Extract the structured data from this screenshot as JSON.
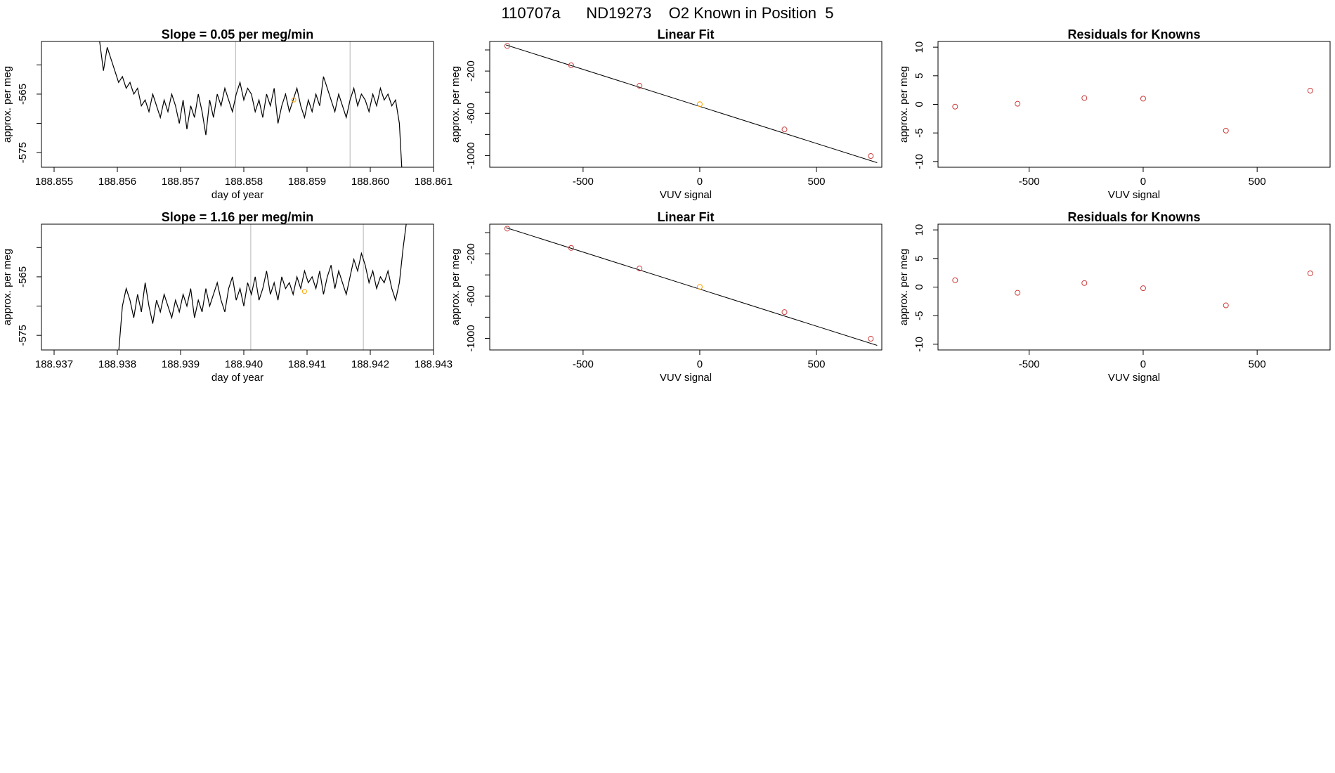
{
  "page": {
    "title": "110707a      ND19273    O2 Known in Position  5"
  },
  "colors": {
    "line": "#000000",
    "vline": "#b4b4b4",
    "known": "#cd3c3c",
    "highlight": "#ffa500"
  },
  "chart_data": [
    {
      "type": "line",
      "title": "Slope =  0.05  per meg/min",
      "xlabel": "day of year",
      "ylabel": "approx. per meg",
      "xlim": [
        188.8548,
        188.861
      ],
      "ylim": [
        -577.5,
        -556
      ],
      "xticks": [
        188.855,
        188.856,
        188.857,
        188.858,
        188.859,
        188.86,
        188.861
      ],
      "xticklabels": [
        "188.855",
        "188.856",
        "188.857",
        "188.858",
        "188.859",
        "188.860",
        "188.861"
      ],
      "yticks": [
        -575,
        -570,
        -565,
        -560
      ],
      "yticklabels": [
        "-575",
        "",
        "-565",
        ""
      ],
      "vlines": [
        188.85787,
        188.85968
      ],
      "highlight_points": [
        {
          "x": 188.85879,
          "y": -566.0
        }
      ],
      "x": [
        188.85572,
        188.85578,
        188.85584,
        188.8559,
        188.85596,
        188.85602,
        188.85608,
        188.85614,
        188.8562,
        188.85626,
        188.85632,
        188.85638,
        188.85644,
        188.8565,
        188.85656,
        188.85662,
        188.85668,
        188.85674,
        188.8568,
        188.85686,
        188.85692,
        188.85698,
        188.85704,
        188.8571,
        188.85716,
        188.85722,
        188.85728,
        188.85734,
        188.8574,
        188.85746,
        188.85752,
        188.85758,
        188.85764,
        188.8577,
        188.85776,
        188.85782,
        188.85788,
        188.85794,
        188.858,
        188.85806,
        188.85812,
        188.85818,
        188.85824,
        188.8583,
        188.85836,
        188.85842,
        188.85848,
        188.85854,
        188.8586,
        188.85866,
        188.85872,
        188.85878,
        188.85884,
        188.8589,
        188.85896,
        188.85902,
        188.85908,
        188.85914,
        188.8592,
        188.85926,
        188.85932,
        188.85938,
        188.85944,
        188.8595,
        188.85956,
        188.85962,
        188.85968,
        188.85974,
        188.8598,
        188.85986,
        188.85992,
        188.85998,
        188.86004,
        188.8601,
        188.86016,
        188.86022,
        188.86028,
        188.86034,
        188.8604,
        188.86046,
        188.8605
      ],
      "y": [
        -556,
        -561,
        -557,
        -559,
        -561,
        -563,
        -562,
        -564,
        -563,
        -565,
        -564,
        -567,
        -566,
        -568,
        -565,
        -567,
        -569,
        -566,
        -568,
        -565,
        -567,
        -570,
        -566,
        -571,
        -567,
        -569,
        -565,
        -568,
        -572,
        -566,
        -569,
        -565,
        -567,
        -564,
        -566,
        -568,
        -565,
        -563,
        -566,
        -564,
        -565,
        -568,
        -566,
        -569,
        -565,
        -567,
        -564,
        -570,
        -567,
        -565,
        -568,
        -566,
        -564,
        -567,
        -569,
        -566,
        -568,
        -565,
        -567,
        -562,
        -564,
        -566,
        -568,
        -565,
        -567,
        -569,
        -566,
        -564,
        -567,
        -565,
        -566,
        -568,
        -565,
        -567,
        -564,
        -566,
        -565,
        -567,
        -566,
        -570,
        -578
      ]
    },
    {
      "type": "scatter",
      "title": "Linear Fit",
      "xlabel": "VUV signal",
      "ylabel": "approx. per meg",
      "xlim": [
        -900,
        780
      ],
      "ylim": [
        -1110,
        80
      ],
      "xticks": [
        -500,
        0,
        500
      ],
      "xticklabels": [
        "-500",
        "0",
        "500"
      ],
      "yticks": [
        -1000,
        -800,
        -600,
        -400,
        -200,
        0
      ],
      "yticklabels": [
        "-1000",
        "",
        "-600",
        "",
        "-200",
        ""
      ],
      "fit_line": {
        "x": [
          -830,
          760
        ],
        "y": [
          47,
          -1067
        ]
      },
      "points": [
        {
          "x": -825,
          "y": 38,
          "known": true
        },
        {
          "x": -551,
          "y": -145,
          "known": true
        },
        {
          "x": -258,
          "y": -339,
          "known": true
        },
        {
          "x": 0,
          "y": -513,
          "known": false
        },
        {
          "x": 363,
          "y": -752,
          "known": true
        },
        {
          "x": 733,
          "y": -1004,
          "known": true
        }
      ]
    },
    {
      "type": "scatter",
      "title": "Residuals for Knowns",
      "xlabel": "VUV signal",
      "ylabel": "approx. per meg",
      "xlim": [
        -900,
        820
      ],
      "ylim": [
        -11,
        11
      ],
      "xticks": [
        -500,
        0,
        500
      ],
      "xticklabels": [
        "-500",
        "0",
        "500"
      ],
      "yticks": [
        -10,
        -5,
        0,
        5,
        10
      ],
      "yticklabels": [
        "-10",
        "-5",
        "0",
        "5",
        "10"
      ],
      "points": [
        {
          "x": -825,
          "y": -0.4
        },
        {
          "x": -551,
          "y": 0.1
        },
        {
          "x": -258,
          "y": 1.1
        },
        {
          "x": 0,
          "y": 1.0
        },
        {
          "x": 363,
          "y": -4.6
        },
        {
          "x": 733,
          "y": 2.4
        }
      ]
    },
    {
      "type": "line",
      "title": "Slope =  1.16  per meg/min",
      "xlabel": "day of year",
      "ylabel": "approx. per meg",
      "xlim": [
        188.9368,
        188.943
      ],
      "ylim": [
        -577.5,
        -556
      ],
      "xticks": [
        188.937,
        188.938,
        188.939,
        188.94,
        188.941,
        188.942,
        188.943
      ],
      "xticklabels": [
        "188.937",
        "188.938",
        "188.939",
        "188.940",
        "188.941",
        "188.942",
        "188.943"
      ],
      "yticks": [
        -575,
        -570,
        -565,
        -560
      ],
      "yticklabels": [
        "-575",
        "",
        "-565",
        ""
      ],
      "vlines": [
        188.94011,
        188.94189
      ],
      "highlight_points": [
        {
          "x": 188.94096,
          "y": -567.5
        }
      ],
      "x": [
        188.93802,
        188.93808,
        188.93814,
        188.9382,
        188.93826,
        188.93832,
        188.93838,
        188.93844,
        188.9385,
        188.93856,
        188.93862,
        188.93868,
        188.93874,
        188.9388,
        188.93886,
        188.93892,
        188.93898,
        188.93904,
        188.9391,
        188.93916,
        188.93922,
        188.93928,
        188.93934,
        188.9394,
        188.93946,
        188.93952,
        188.93958,
        188.93964,
        188.9397,
        188.93976,
        188.93982,
        188.93988,
        188.93994,
        188.94,
        188.94006,
        188.94012,
        188.94018,
        188.94024,
        188.9403,
        188.94036,
        188.94042,
        188.94048,
        188.94054,
        188.9406,
        188.94066,
        188.94072,
        188.94078,
        188.94084,
        188.9409,
        188.94096,
        188.94102,
        188.94108,
        188.94114,
        188.9412,
        188.94126,
        188.94132,
        188.94138,
        188.94144,
        188.9415,
        188.94156,
        188.94162,
        188.94168,
        188.94174,
        188.9418,
        188.94186,
        188.94192,
        188.94198,
        188.94204,
        188.9421,
        188.94216,
        188.94222,
        188.94228,
        188.94234,
        188.9424,
        188.94246,
        188.94252,
        188.94258
      ],
      "y": [
        -578,
        -570,
        -567,
        -569,
        -572,
        -568,
        -571,
        -566,
        -570,
        -573,
        -569,
        -571,
        -568,
        -570,
        -572,
        -569,
        -571,
        -568,
        -570,
        -567,
        -572,
        -569,
        -571,
        -567,
        -570,
        -568,
        -566,
        -569,
        -571,
        -567,
        -565,
        -569,
        -567,
        -570,
        -566,
        -568,
        -565,
        -569,
        -567,
        -564,
        -568,
        -566,
        -569,
        -565,
        -567,
        -566,
        -568,
        -565,
        -567,
        -564,
        -566,
        -565,
        -567,
        -564,
        -568,
        -565,
        -563,
        -567,
        -564,
        -566,
        -568,
        -565,
        -562,
        -564,
        -561,
        -563,
        -566,
        -564,
        -567,
        -565,
        -566,
        -564,
        -567,
        -569,
        -566,
        -560,
        -555
      ]
    },
    {
      "type": "scatter",
      "title": "Linear Fit",
      "xlabel": "VUV signal",
      "ylabel": "approx. per meg",
      "xlim": [
        -900,
        780
      ],
      "ylim": [
        -1110,
        80
      ],
      "xticks": [
        -500,
        0,
        500
      ],
      "xticklabels": [
        "-500",
        "0",
        "500"
      ],
      "yticks": [
        -1000,
        -800,
        -600,
        -400,
        -200,
        0
      ],
      "yticklabels": [
        "-1000",
        "",
        "-600",
        "",
        "-200",
        ""
      ],
      "fit_line": {
        "x": [
          -830,
          760
        ],
        "y": [
          47,
          -1067
        ]
      },
      "points": [
        {
          "x": -825,
          "y": 38,
          "known": true
        },
        {
          "x": -551,
          "y": -145,
          "known": true
        },
        {
          "x": -258,
          "y": -339,
          "known": true
        },
        {
          "x": 0,
          "y": -513,
          "known": false
        },
        {
          "x": 363,
          "y": -752,
          "known": true
        },
        {
          "x": 733,
          "y": -1004,
          "known": true
        }
      ]
    },
    {
      "type": "scatter",
      "title": "Residuals for Knowns",
      "xlabel": "VUV signal",
      "ylabel": "approx. per meg",
      "xlim": [
        -900,
        820
      ],
      "ylim": [
        -11,
        11
      ],
      "xticks": [
        -500,
        0,
        500
      ],
      "xticklabels": [
        "-500",
        "0",
        "500"
      ],
      "yticks": [
        -10,
        -5,
        0,
        5,
        10
      ],
      "yticklabels": [
        "-10",
        "-5",
        "0",
        "5",
        "10"
      ],
      "points": [
        {
          "x": -825,
          "y": 1.2
        },
        {
          "x": -551,
          "y": -1.0
        },
        {
          "x": -258,
          "y": 0.7
        },
        {
          "x": 0,
          "y": -0.2
        },
        {
          "x": 363,
          "y": -3.2
        },
        {
          "x": 733,
          "y": 2.4
        }
      ]
    }
  ]
}
